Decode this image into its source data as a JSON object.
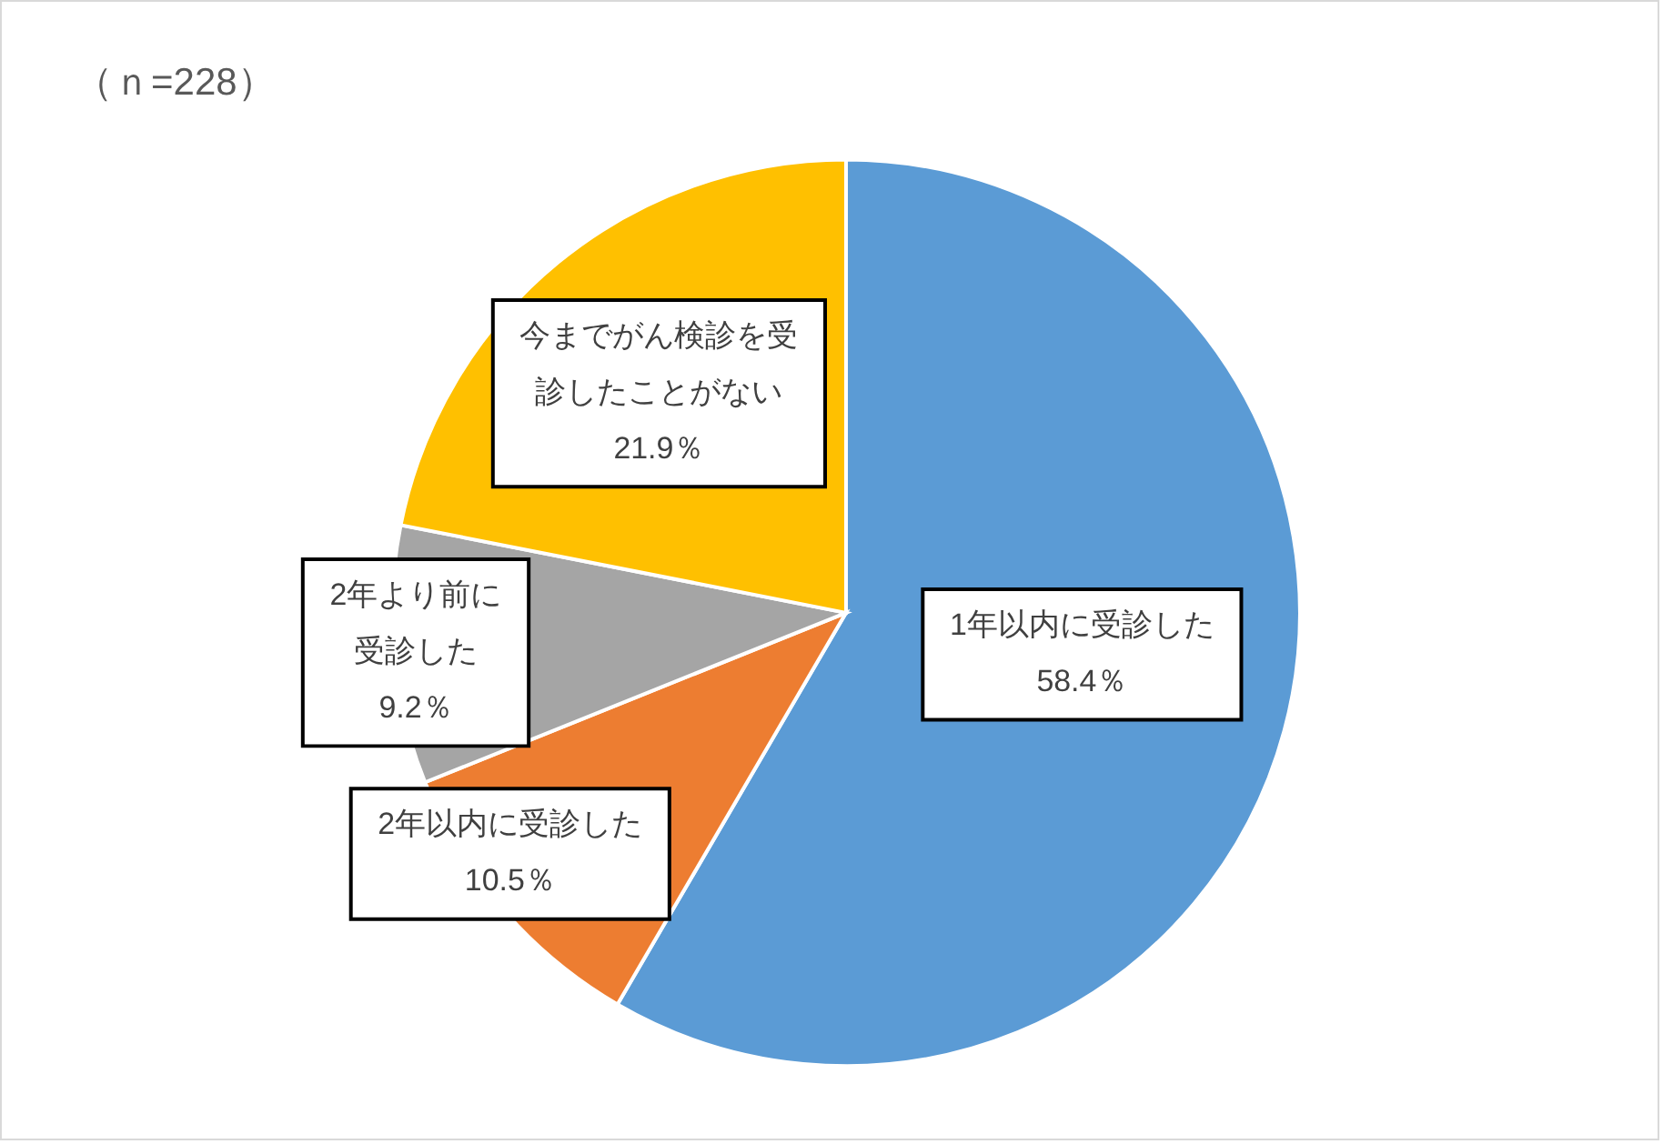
{
  "chart_data": {
    "type": "pie",
    "title": "（ｎ=228）",
    "categories": [
      "1年以内に受診した",
      "2年以内に受診した",
      "2年より前に受診した",
      "今までがん検診を受診したことがない"
    ],
    "values": [
      58.4,
      10.5,
      9.2,
      21.9
    ],
    "colors": [
      "#5b9bd5",
      "#ed7d31",
      "#a5a5a5",
      "#ffc000"
    ],
    "value_labels": [
      "58.4％",
      "10.5％",
      "9.2％",
      "21.9％"
    ]
  }
}
